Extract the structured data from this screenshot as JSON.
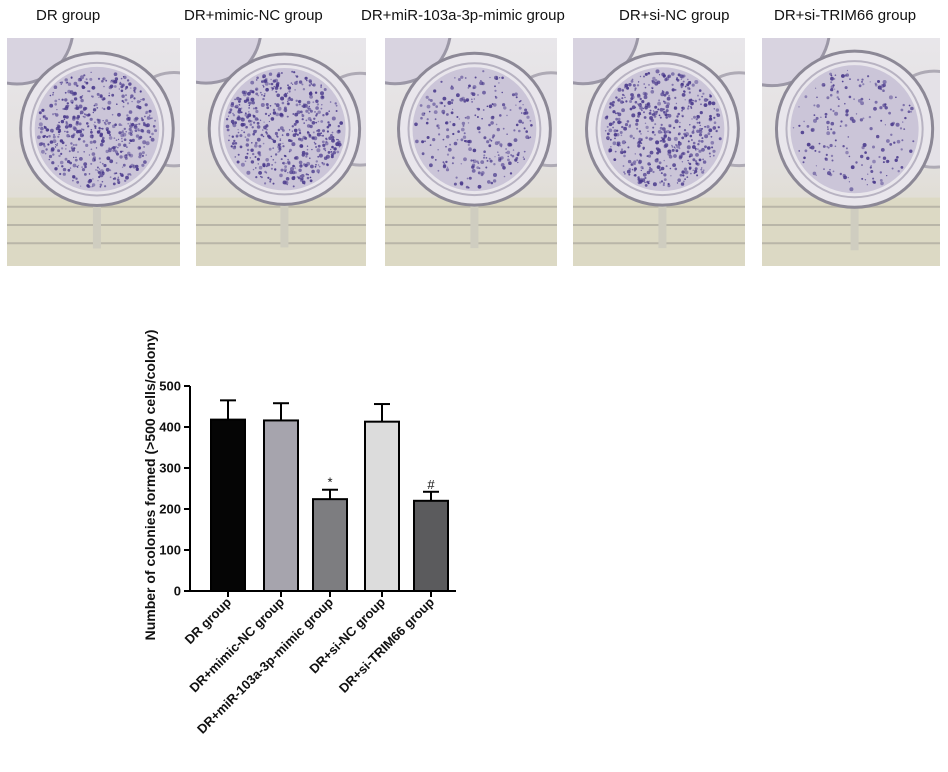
{
  "panels": [
    {
      "label": "DR group"
    },
    {
      "label": "DR+mimic-NC group"
    },
    {
      "label": "DR+miR-103a-3p-mimic group"
    },
    {
      "label": "DR+si-NC group"
    },
    {
      "label": "DR+si-TRIM66 group"
    }
  ],
  "colors": {
    "stain": "#4a3a8c",
    "bars": [
      "#050505",
      "#a6a4ad",
      "#7d7d80",
      "#dcdcdc",
      "#5b5b5d"
    ]
  },
  "chart_data": {
    "type": "bar",
    "title": "",
    "xlabel": "",
    "ylabel": "Number of colonies formed (>500 cells/colony)",
    "categories": [
      "DR group",
      "DR+mimic-NC group",
      "DR+miR-103a-3p-mimic group",
      "DR+si-NC group",
      "DR+si-TRIM66 group"
    ],
    "values": [
      418,
      416,
      224,
      413,
      220
    ],
    "errors": [
      47,
      42,
      23,
      43,
      22
    ],
    "annotations": [
      "",
      "",
      "*",
      "",
      "#"
    ],
    "ylim": [
      0,
      500
    ],
    "yticks": [
      0,
      100,
      200,
      300,
      400,
      500
    ],
    "grid": false
  }
}
